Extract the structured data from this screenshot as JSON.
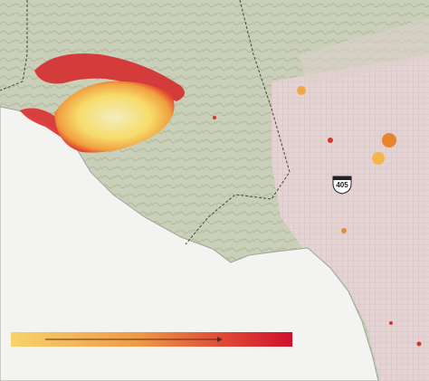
{
  "map": {
    "highway_shield": "405"
  }
}
